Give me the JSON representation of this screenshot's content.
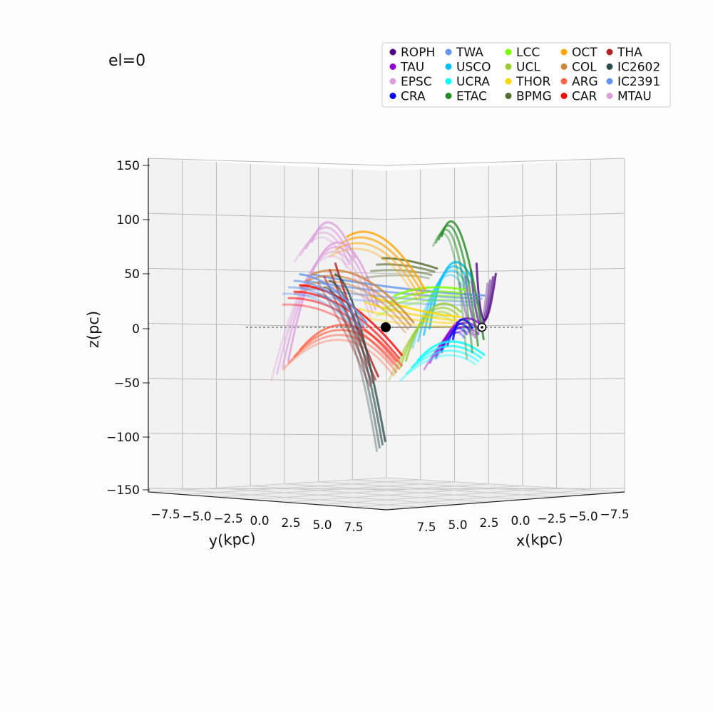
{
  "chart_data": {
    "type": "line",
    "title": "el=0",
    "xlabel": "x(kpc)",
    "ylabel": "y(kpc)",
    "zlabel": "z(pc)",
    "x_ticks": [
      "7.5",
      "5.0",
      "2.5",
      "0.0",
      "−2.5",
      "−5.0",
      "−7.5"
    ],
    "y_ticks": [
      "−7.5",
      "−5.0",
      "−2.5",
      "0.0",
      "2.5",
      "5.0",
      "7.5"
    ],
    "z_ticks": [
      "150",
      "100",
      "50",
      "0",
      "−50",
      "−100",
      "−150"
    ],
    "zlim": [
      -150,
      150
    ],
    "legend_placement": "top-right",
    "legend_columns": 5,
    "markers": {
      "galactic_center": "●",
      "sun": "⊙"
    },
    "series": [
      {
        "name": "ROPH",
        "color": "#4b0082",
        "start": [
          0.45,
          45
        ],
        "end": [
          0.35,
          50
        ],
        "peak": 0
      },
      {
        "name": "TAU",
        "color": "#9400d3",
        "start": [
          0.4,
          -5
        ],
        "end": [
          0.2,
          -30
        ],
        "peak": 0
      },
      {
        "name": "EPSC",
        "color": "#dda0dd",
        "start": [
          -0.05,
          15
        ],
        "end": [
          -0.45,
          -40
        ],
        "peak": 70
      },
      {
        "name": "CRA",
        "color": "#0000ff",
        "start": [
          0.35,
          -5
        ],
        "end": [
          0.25,
          -20
        ],
        "peak": 0
      },
      {
        "name": "TWA",
        "color": "#6495ed",
        "start": [
          0.4,
          25
        ],
        "end": [
          -0.35,
          40
        ],
        "peak": 30
      },
      {
        "name": "USCO",
        "color": "#00bfff",
        "start": [
          0.35,
          40
        ],
        "end": [
          0.15,
          -10
        ],
        "peak": 50
      },
      {
        "name": "UCRA",
        "color": "#00ffff",
        "start": [
          0.4,
          -30
        ],
        "end": [
          0.1,
          -40
        ],
        "peak": -20
      },
      {
        "name": "ETAC",
        "color": "#228b22",
        "start": [
          0.22,
          80
        ],
        "end": [
          0.38,
          -20
        ],
        "peak": 80
      },
      {
        "name": "LCC",
        "color": "#7cfc00",
        "start": [
          0.32,
          30
        ],
        "end": [
          0.0,
          20
        ],
        "peak": 30
      },
      {
        "name": "UCL",
        "color": "#9acd32",
        "start": [
          0.3,
          10
        ],
        "end": [
          0.05,
          -40
        ],
        "peak": 10
      },
      {
        "name": "THOR",
        "color": "#ffd700",
        "start": [
          0.3,
          5
        ],
        "end": [
          -0.1,
          20
        ],
        "peak": 10
      },
      {
        "name": "BPMG",
        "color": "#556b2f",
        "start": [
          0.2,
          50
        ],
        "end": [
          -0.05,
          55
        ],
        "peak": 55
      },
      {
        "name": "OCT",
        "color": "#ffa500",
        "start": [
          0.15,
          30
        ],
        "end": [
          -0.2,
          75
        ],
        "peak": 75
      },
      {
        "name": "COL",
        "color": "#cd853f",
        "start": [
          0.1,
          0
        ],
        "end": [
          -0.35,
          40
        ],
        "peak": 40
      },
      {
        "name": "ARG",
        "color": "#ff6347",
        "start": [
          0.05,
          -40
        ],
        "end": [
          -0.4,
          -30
        ],
        "peak": -5
      },
      {
        "name": "CAR",
        "color": "#ff0000",
        "start": [
          0.05,
          -30
        ],
        "end": [
          -0.4,
          30
        ],
        "peak": 15
      },
      {
        "name": "THA",
        "color": "#b22222",
        "start": [
          -0.05,
          -50
        ],
        "end": [
          -0.25,
          50
        ],
        "peak": 0
      },
      {
        "name": "IC2602",
        "color": "#2f4f4f",
        "start": [
          -0.02,
          -110
        ],
        "end": [
          -0.25,
          40
        ],
        "peak": 0
      },
      {
        "name": "IC2391",
        "color": "#6495ed",
        "start": [
          -0.1,
          0
        ],
        "end": [
          -0.4,
          40
        ],
        "peak": 30
      },
      {
        "name": "MTAU",
        "color": "#dda0dd",
        "start": [
          -0.15,
          60
        ],
        "end": [
          -0.35,
          70
        ],
        "peak": 90
      }
    ]
  }
}
